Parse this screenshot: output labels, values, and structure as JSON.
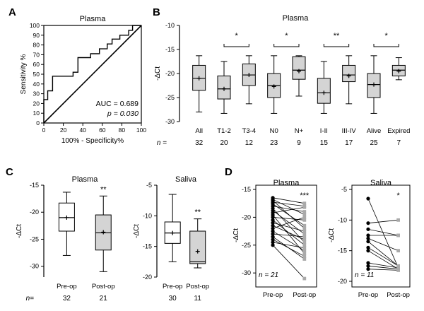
{
  "panel_labels": {
    "a": "A",
    "b": "B",
    "c": "C",
    "d": "D"
  },
  "chart_data": [
    {
      "panel": "A",
      "type": "line",
      "title": "Plasma",
      "xlabel": "100% - Specificity%",
      "ylabel": "Sensitivity %",
      "xlim": [
        0,
        100
      ],
      "ylim": [
        0,
        100
      ],
      "x_ticks": [
        "0",
        "20",
        "40",
        "60",
        "80",
        "100"
      ],
      "y_ticks": [
        "0",
        "10",
        "20",
        "30",
        "40",
        "50",
        "60",
        "70",
        "80",
        "90",
        "100"
      ],
      "auc_text": "AUC = 0.689",
      "p_text": "p = 0.030",
      "roc_points": [
        [
          0,
          0
        ],
        [
          0,
          5
        ],
        [
          0,
          10
        ],
        [
          0,
          14
        ],
        [
          0,
          19
        ],
        [
          0,
          24
        ],
        [
          4,
          24
        ],
        [
          4,
          33
        ],
        [
          9,
          33
        ],
        [
          9,
          38
        ],
        [
          9,
          48
        ],
        [
          22,
          48
        ],
        [
          30,
          48
        ],
        [
          30,
          52
        ],
        [
          35,
          52
        ],
        [
          35,
          62
        ],
        [
          35,
          67
        ],
        [
          48,
          67
        ],
        [
          48,
          71
        ],
        [
          57,
          71
        ],
        [
          57,
          76
        ],
        [
          65,
          76
        ],
        [
          65,
          81
        ],
        [
          70,
          81
        ],
        [
          70,
          86
        ],
        [
          78,
          86
        ],
        [
          78,
          90
        ],
        [
          87,
          90
        ],
        [
          87,
          95
        ],
        [
          91,
          95
        ],
        [
          91,
          100
        ],
        [
          100,
          100
        ]
      ],
      "reference_line": [
        [
          0,
          0
        ],
        [
          100,
          100
        ]
      ]
    },
    {
      "panel": "B",
      "type": "box",
      "title": "Plasma",
      "ylabel": "-ΔCt",
      "ylim": [
        -30,
        -10
      ],
      "y_ticks": [
        "-10",
        "-15",
        "-20",
        "-25",
        "-30"
      ],
      "n_label": "n =",
      "categories": [
        "All",
        "T1-2",
        "T3-4",
        "N0",
        "N+",
        "I-II",
        "III-IV",
        "Alive",
        "Expired"
      ],
      "n_values": [
        "32",
        "20",
        "12",
        "23",
        "9",
        "15",
        "17",
        "25",
        "7"
      ],
      "boxes": [
        {
          "min": -28.0,
          "q1": -23.5,
          "median": -21.0,
          "q3": -18.3,
          "max": -16.3,
          "mean": -21.0
        },
        {
          "min": -28.3,
          "q1": -25.3,
          "median": -23.2,
          "q3": -20.5,
          "max": -17.5,
          "mean": -23.2
        },
        {
          "min": -26.3,
          "q1": -22.5,
          "median": -20.3,
          "q3": -18.0,
          "max": -16.3,
          "mean": -20.3
        },
        {
          "min": -28.3,
          "q1": -25.0,
          "median": -22.5,
          "q3": -20.0,
          "max": -16.3,
          "mean": -22.7
        },
        {
          "min": -24.7,
          "q1": -21.2,
          "median": -19.3,
          "q3": -16.5,
          "max": -16.3,
          "mean": -19.5
        },
        {
          "min": -28.3,
          "q1": -26.2,
          "median": -24.0,
          "q3": -21.0,
          "max": -17.5,
          "mean": -24.0
        },
        {
          "min": -26.3,
          "q1": -21.7,
          "median": -20.3,
          "q3": -18.3,
          "max": -16.3,
          "mean": -20.5
        },
        {
          "min": -28.3,
          "q1": -25.0,
          "median": -22.3,
          "q3": -20.0,
          "max": -16.3,
          "mean": -22.3
        },
        {
          "min": -21.3,
          "q1": -20.5,
          "median": -19.3,
          "q3": -18.3,
          "max": -16.7,
          "mean": -19.5
        }
      ],
      "significance": [
        {
          "from": 1,
          "to": 2,
          "label": "*"
        },
        {
          "from": 3,
          "to": 4,
          "label": "*"
        },
        {
          "from": 5,
          "to": 6,
          "label": "**"
        },
        {
          "from": 7,
          "to": 8,
          "label": "*"
        }
      ]
    },
    {
      "panel": "C",
      "type": "box",
      "title": "Plasma",
      "ylabel": "-ΔCt",
      "ylim": [
        -32,
        -15
      ],
      "y_ticks": [
        "-15",
        "-20",
        "-25",
        "-30"
      ],
      "n_label": "n=",
      "categories": [
        "Pre-op",
        "Post-op"
      ],
      "n_values": [
        "32",
        "21"
      ],
      "boxes": [
        {
          "min": -28.0,
          "q1": -23.5,
          "median": -21.0,
          "q3": -18.3,
          "max": -16.3,
          "mean": -21.0,
          "fill": "#ffffff"
        },
        {
          "min": -31.0,
          "q1": -27.0,
          "median": -23.8,
          "q3": -20.5,
          "max": -17.0,
          "mean": -23.7,
          "fill": "#d4d4d4"
        }
      ],
      "significance_label": "**"
    },
    {
      "panel": "C",
      "type": "box",
      "title": "Saliva",
      "ylabel": "-ΔCt",
      "ylim": [
        -20,
        -5
      ],
      "y_ticks": [
        "-5",
        "-10",
        "-15",
        "-20"
      ],
      "categories": [
        "Pre-op",
        "Post-op"
      ],
      "n_values": [
        "30",
        "11"
      ],
      "boxes": [
        {
          "min": -17.5,
          "q1": -14.5,
          "median": -12.8,
          "q3": -11.0,
          "max": -6.5,
          "mean": -12.8,
          "fill": "#ffffff"
        },
        {
          "min": -18.5,
          "q1": -17.8,
          "median": -17.5,
          "q3": -12.5,
          "max": -10.5,
          "mean": -15.8,
          "fill": "#d4d4d4"
        }
      ],
      "significance_label": "**"
    },
    {
      "panel": "D",
      "type": "line",
      "title": "Plasma",
      "ylabel": "-ΔCt",
      "ylim": [
        -31.5,
        -15
      ],
      "y_ticks": [
        "-15",
        "-20",
        "-25",
        "-30"
      ],
      "categories": [
        "Pre-op",
        "Post-op"
      ],
      "n_text": "n = 21",
      "significance_label": "***",
      "pairs": [
        [
          -16.5,
          -17.5
        ],
        [
          -16.8,
          -19.5
        ],
        [
          -17.0,
          -22.0
        ],
        [
          -17.3,
          -18.0
        ],
        [
          -17.6,
          -21.5
        ],
        [
          -18.0,
          -19.0
        ],
        [
          -18.4,
          -24.5
        ],
        [
          -18.8,
          -23.0
        ],
        [
          -19.2,
          -18.2
        ],
        [
          -19.6,
          -26.5
        ],
        [
          -20.0,
          -20.5
        ],
        [
          -20.5,
          -25.0
        ],
        [
          -21.0,
          -22.5
        ],
        [
          -21.5,
          -24.0
        ],
        [
          -22.0,
          -20.0
        ],
        [
          -22.5,
          -26.0
        ],
        [
          -23.0,
          -23.5
        ],
        [
          -23.5,
          -27.5
        ],
        [
          -24.0,
          -27.0
        ],
        [
          -24.5,
          -25.5
        ],
        [
          -25.0,
          -31.0
        ]
      ]
    },
    {
      "panel": "D",
      "type": "line",
      "title": "Saliva",
      "ylabel": "-ΔCt",
      "ylim": [
        -20,
        -5
      ],
      "y_ticks": [
        "-5",
        "-10",
        "-15",
        "-20"
      ],
      "categories": [
        "Pre-op",
        "Post-op"
      ],
      "n_text": "n = 11",
      "significance_label": "*",
      "pairs": [
        [
          -6.5,
          -17.8
        ],
        [
          -10.5,
          -10.0
        ],
        [
          -11.5,
          -12.5
        ],
        [
          -12.5,
          -12.5
        ],
        [
          -13.0,
          -15.0
        ],
        [
          -13.5,
          -17.5
        ],
        [
          -14.5,
          -17.5
        ],
        [
          -15.0,
          -18.0
        ],
        [
          -17.0,
          -17.8
        ],
        [
          -17.5,
          -18.0
        ],
        [
          -18.0,
          -18.2
        ]
      ]
    }
  ]
}
